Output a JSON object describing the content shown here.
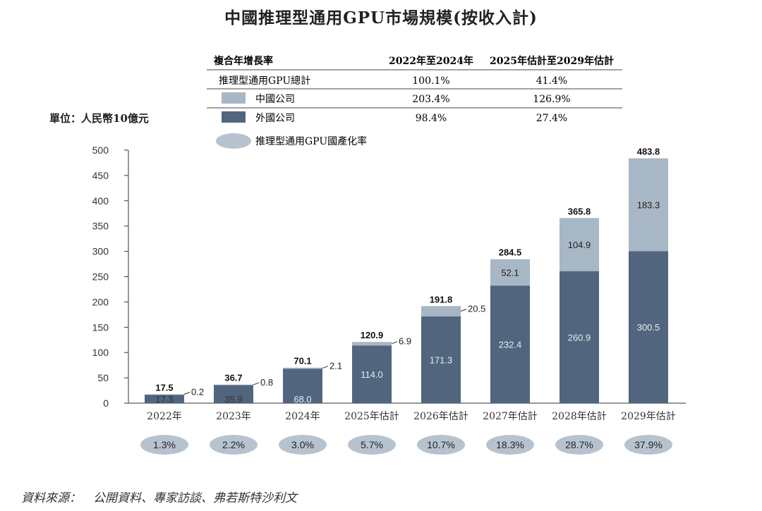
{
  "title": "中國推理型通用GPU市場規模(按收入計)",
  "unit": "單位：人民幣10億元",
  "source": "資料來源：　公開資料、專家訪談、弗若斯特沙利文",
  "colors": {
    "domestic": "#a8b7c5",
    "foreign": "#51657e",
    "rate": "#b6c3cf",
    "axis": "#333333"
  },
  "cagr_table": {
    "header": [
      "複合年增長率",
      "2022年至2024年",
      "2025年估計至2029年估計"
    ],
    "rows": [
      {
        "label": "推理型通用GPU總計",
        "v1": "100.1%",
        "v2": "41.4%",
        "swatch": ""
      },
      {
        "label": "中國公司",
        "v1": "203.4%",
        "v2": "126.9%",
        "swatch": "domestic"
      },
      {
        "label": "外國公司",
        "v1": "98.4%",
        "v2": "27.4%",
        "swatch": "foreign"
      }
    ],
    "rate_legend": "推理型通用GPU國產化率"
  },
  "chart_data": {
    "type": "bar",
    "stacked": true,
    "categories": [
      "2022年",
      "2023年",
      "2024年",
      "2025年估計",
      "2026年估計",
      "2027年估計",
      "2028年估計",
      "2029年估計"
    ],
    "series": [
      {
        "name": "外國公司",
        "values": [
          17.3,
          35.9,
          68.0,
          114.0,
          171.3,
          232.4,
          260.9,
          300.5
        ]
      },
      {
        "name": "中國公司",
        "values": [
          0.2,
          0.8,
          2.1,
          6.9,
          20.5,
          52.1,
          104.9,
          183.3
        ]
      }
    ],
    "totals": [
      17.5,
      36.7,
      70.1,
      120.9,
      191.8,
      284.5,
      365.8,
      483.8
    ],
    "segment_labels_foreign": [
      "17.3",
      "35.9",
      "68.0",
      "114.0",
      "171.3",
      "232.4",
      "260.9",
      "300.5"
    ],
    "segment_labels_domestic": [
      "0.2",
      "0.8",
      "2.1",
      "6.9",
      "20.5",
      "52.1",
      "104.9",
      "183.3"
    ],
    "total_labels": [
      "17.5",
      "36.7",
      "70.1",
      "120.9",
      "191.8",
      "284.5",
      "365.8",
      "483.8"
    ],
    "localization_rate": [
      "1.3%",
      "2.2%",
      "3.0%",
      "5.7%",
      "10.7%",
      "18.3%",
      "28.7%",
      "37.9%"
    ],
    "ylim": [
      0,
      500
    ],
    "yticks": [
      "0",
      "50",
      "100",
      "150",
      "200",
      "250",
      "300",
      "350",
      "400",
      "450",
      "500"
    ],
    "grid": false
  }
}
